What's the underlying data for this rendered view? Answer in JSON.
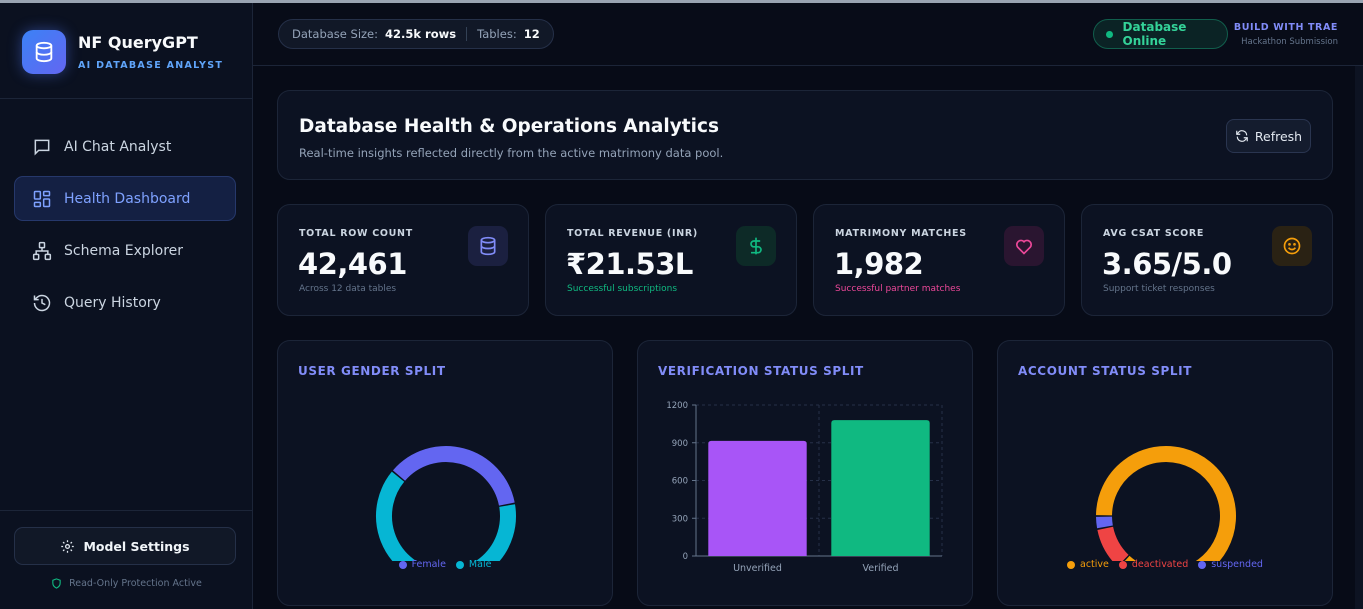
{
  "sidebar": {
    "brand_title": "NF QueryGPT",
    "brand_sub": "AI DATABASE ANALYST",
    "nav": [
      {
        "label": "AI Chat Analyst",
        "icon": "chat-icon",
        "active": false
      },
      {
        "label": "Health Dashboard",
        "icon": "dashboard-grid-icon",
        "active": true
      },
      {
        "label": "Schema Explorer",
        "icon": "schema-tree-icon",
        "active": false
      },
      {
        "label": "Query History",
        "icon": "history-clock-icon",
        "active": false
      }
    ],
    "model_settings": "Model Settings",
    "protection": "Read-Only Protection Active"
  },
  "header": {
    "db_size_label": "Database Size:",
    "db_size_value": "42.5k rows",
    "tables_label": "Tables:",
    "tables_value": "12",
    "status": "Database Online",
    "build_title": "BUILD WITH TRAE",
    "build_sub": "Hackathon Submission"
  },
  "hero": {
    "title": "Database Health & Operations Analytics",
    "subtitle": "Real-time insights reflected directly from the active matrimony data pool.",
    "refresh": "Refresh"
  },
  "stats": [
    {
      "label": "TOTAL ROW COUNT",
      "value": "42,461",
      "sub": "Across 12 data tables",
      "sub_color": "#64748b",
      "icon": "database-icon",
      "icon_color": "#818cf8",
      "icon_bg": "#1b2040"
    },
    {
      "label": "TOTAL REVENUE (INR)",
      "value": "₹21.53L",
      "sub": "Successful subscriptions",
      "sub_color": "#10b981",
      "icon": "dollar-icon",
      "icon_color": "#10b981",
      "icon_bg": "#0d2a27"
    },
    {
      "label": "MATRIMONY MATCHES",
      "value": "1,982",
      "sub": "Successful partner matches",
      "sub_color": "#ec4899",
      "icon": "heart-icon",
      "icon_color": "#ec4899",
      "icon_bg": "#2a1530"
    },
    {
      "label": "AVG CSAT SCORE",
      "value": "3.65/5.0",
      "sub": "Support ticket responses",
      "sub_color": "#64748b",
      "icon": "smile-icon",
      "icon_color": "#f59e0b",
      "icon_bg": "#2a2214"
    }
  ],
  "chart_data": [
    {
      "type": "pie",
      "title": "USER GENDER SPLIT",
      "categories": [
        "Female",
        "Male"
      ],
      "values": [
        36,
        64
      ],
      "colors": [
        "#6366f1",
        "#06b6d4"
      ],
      "legend": "bottom"
    },
    {
      "type": "bar",
      "title": "VERIFICATION STATUS SPLIT",
      "categories": [
        "Unverified",
        "Verified"
      ],
      "values": [
        915,
        1080
      ],
      "colors": [
        "#a855f7",
        "#10b981"
      ],
      "ylim": [
        0,
        1200
      ],
      "yticks": [
        "0",
        "300",
        "600",
        "900",
        "1200"
      ],
      "grid": true
    },
    {
      "type": "pie",
      "title": "ACCOUNT STATUS SPLIT",
      "categories": [
        "active",
        "deactivated",
        "suspended"
      ],
      "values": [
        87,
        10,
        3
      ],
      "colors": [
        "#f59e0b",
        "#ef4444",
        "#6366f1"
      ],
      "legend": "bottom"
    }
  ]
}
